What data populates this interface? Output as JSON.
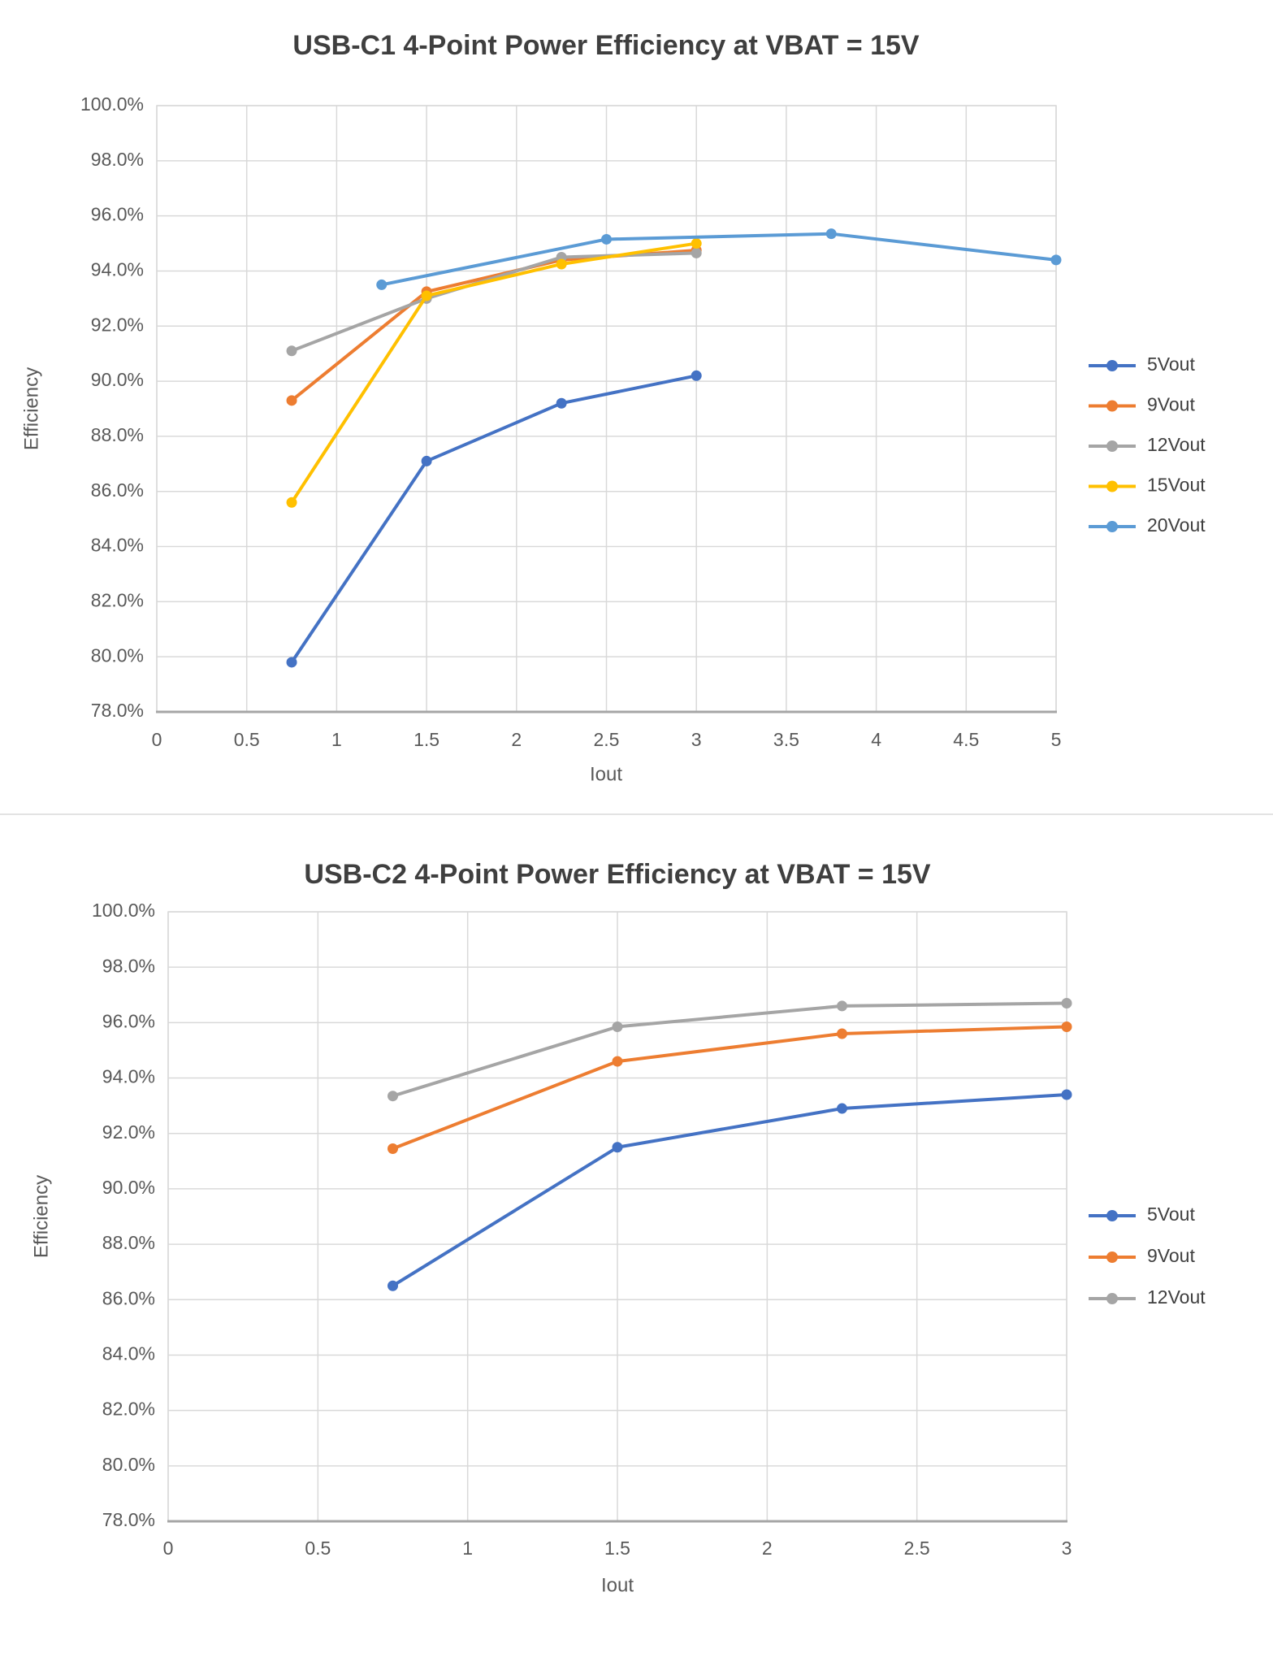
{
  "page": {
    "background_color": "#ffffff",
    "separator_color": "#e3e3e3"
  },
  "styles": {
    "title_color": "#3f3f3f",
    "tick_label_color": "#595959",
    "axis_title_color": "#595959",
    "legend_text_color": "#404040",
    "gridline_color": "#d9d9d9",
    "plot_border_color": "#d9d9d9",
    "axis_line_color": "#a6a6a6"
  },
  "chart_data": [
    {
      "type": "line",
      "title": "USB-C1 4-Point Power Efficiency at VBAT = 15V",
      "xlabel": "Iout",
      "ylabel": "Efficiency",
      "xlim": [
        0,
        5
      ],
      "ylim": [
        78,
        100
      ],
      "x_tick_labels": [
        "0",
        "0.5",
        "1",
        "1.5",
        "2",
        "2.5",
        "3",
        "3.5",
        "4",
        "4.5",
        "5"
      ],
      "x_tick_values": [
        0,
        0.5,
        1,
        1.5,
        2,
        2.5,
        3,
        3.5,
        4,
        4.5,
        5
      ],
      "y_tick_labels": [
        "100.0%",
        "98.0%",
        "96.0%",
        "94.0%",
        "92.0%",
        "90.0%",
        "88.0%",
        "86.0%",
        "84.0%",
        "82.0%",
        "80.0%",
        "78.0%"
      ],
      "y_tick_values": [
        100,
        98,
        96,
        94,
        92,
        90,
        88,
        86,
        84,
        82,
        80,
        78
      ],
      "grid": true,
      "legend_position": "right",
      "series": [
        {
          "name": "5Vout",
          "color": "#4472C4",
          "x": [
            0.75,
            1.5,
            2.25,
            3
          ],
          "y": [
            79.8,
            87.1,
            89.2,
            90.2
          ]
        },
        {
          "name": "9Vout",
          "color": "#ED7D31",
          "x": [
            0.75,
            1.5,
            2.25,
            3
          ],
          "y": [
            89.3,
            93.25,
            94.4,
            94.75
          ]
        },
        {
          "name": "12Vout",
          "color": "#A5A5A5",
          "x": [
            0.75,
            1.5,
            2.25,
            3
          ],
          "y": [
            91.1,
            93.0,
            94.5,
            94.65
          ]
        },
        {
          "name": "15Vout",
          "color": "#FFC000",
          "x": [
            0.75,
            1.5,
            2.25,
            3
          ],
          "y": [
            85.6,
            93.1,
            94.25,
            95.0
          ]
        },
        {
          "name": "20Vout",
          "color": "#5B9BD5",
          "x": [
            1.25,
            2.5,
            3.75,
            5
          ],
          "y": [
            93.5,
            95.15,
            95.35,
            94.4
          ]
        }
      ]
    },
    {
      "type": "line",
      "title": "USB-C2 4-Point Power Efficiency at VBAT = 15V",
      "xlabel": "Iout",
      "ylabel": "Efficiency",
      "xlim": [
        0,
        3
      ],
      "ylim": [
        78,
        100
      ],
      "x_tick_labels": [
        "0",
        "0.5",
        "1",
        "1.5",
        "2",
        "2.5",
        "3"
      ],
      "x_tick_values": [
        0,
        0.5,
        1,
        1.5,
        2,
        2.5,
        3
      ],
      "y_tick_labels": [
        "100.0%",
        "98.0%",
        "96.0%",
        "94.0%",
        "92.0%",
        "90.0%",
        "88.0%",
        "86.0%",
        "84.0%",
        "82.0%",
        "80.0%",
        "78.0%"
      ],
      "y_tick_values": [
        100,
        98,
        96,
        94,
        92,
        90,
        88,
        86,
        84,
        82,
        80,
        78
      ],
      "grid": true,
      "legend_position": "right",
      "series": [
        {
          "name": "5Vout",
          "color": "#4472C4",
          "x": [
            0.75,
            1.5,
            2.25,
            3
          ],
          "y": [
            86.5,
            91.5,
            92.9,
            93.4
          ]
        },
        {
          "name": "9Vout",
          "color": "#ED7D31",
          "x": [
            0.75,
            1.5,
            2.25,
            3
          ],
          "y": [
            91.45,
            94.6,
            95.6,
            95.85
          ]
        },
        {
          "name": "12Vout",
          "color": "#A5A5A5",
          "x": [
            0.75,
            1.5,
            2.25,
            3
          ],
          "y": [
            93.35,
            95.85,
            96.6,
            96.7
          ]
        }
      ]
    }
  ]
}
